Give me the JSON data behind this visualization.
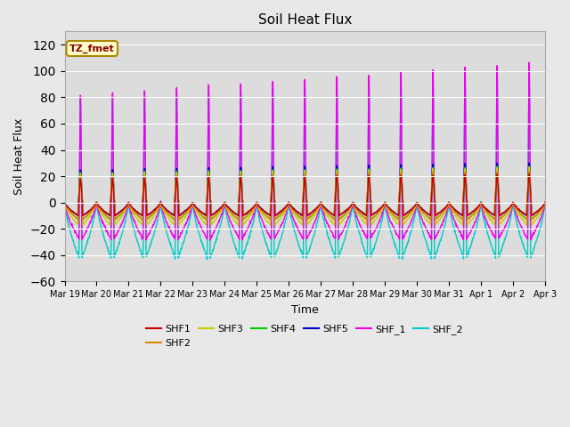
{
  "title": "Soil Heat Flux",
  "xlabel": "Time",
  "ylabel": "Soil Heat Flux",
  "ylim": [
    -60,
    130
  ],
  "yticks": [
    -60,
    -40,
    -20,
    0,
    20,
    40,
    60,
    80,
    100,
    120
  ],
  "series_colors": {
    "SHF1": "#cc0000",
    "SHF2": "#dd8800",
    "SHF3": "#cccc00",
    "SHF4": "#00cc00",
    "SHF5": "#0000cc",
    "SHF_1": "#ee00ee",
    "SHF_2": "#00cccc"
  },
  "annotation_text": "TZ_fmet",
  "annotation_fg": "#880000",
  "annotation_bg": "#ffffcc",
  "annotation_edge": "#aa8800",
  "fig_bg": "#e8e8e8",
  "plot_bg": "#dcdcdc",
  "grid_color": "#ffffff",
  "tick_labels": [
    "Mar 19",
    "Mar 20",
    "Mar 21",
    "Mar 22",
    "Mar 23",
    "Mar 24",
    "Mar 25",
    "Mar 26",
    "Mar 27",
    "Mar 28",
    "Mar 29",
    "Mar 30",
    "Mar 31",
    "Apr 1",
    "Apr 2",
    "Apr 3"
  ],
  "n_days": 15,
  "n_points": 1440
}
